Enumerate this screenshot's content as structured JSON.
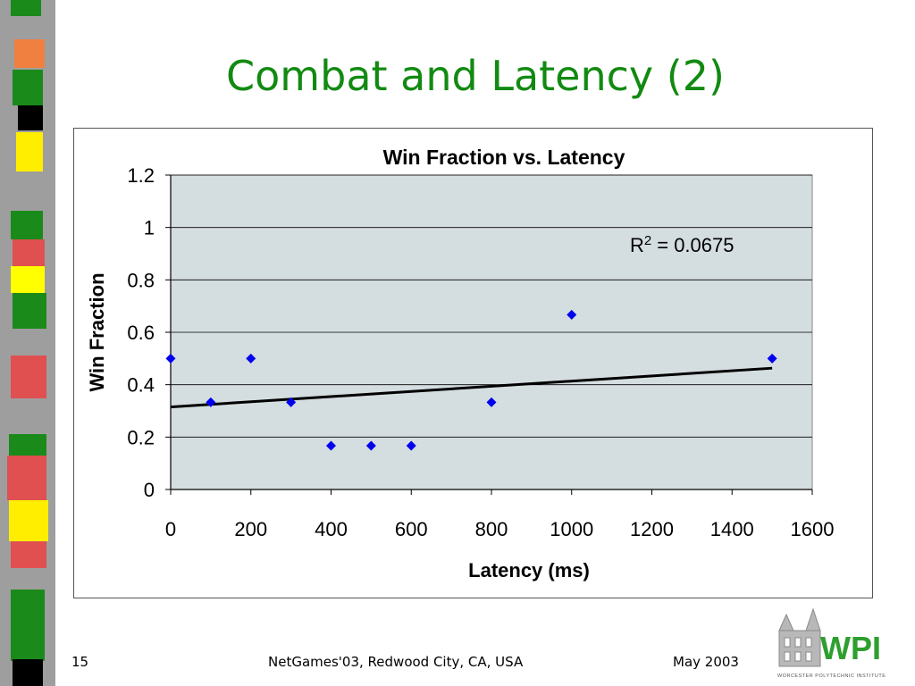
{
  "slide": {
    "title": "Combat and Latency (2)",
    "page_number": "15",
    "conference": "NetGames'03, Redwood City, CA, USA",
    "date": "May 2003"
  },
  "logo": {
    "text": "WPI",
    "subtext": "WORCESTER POLYTECHNIC INSTITUTE"
  },
  "chart_data": {
    "type": "scatter",
    "title": "Win Fraction vs. Latency",
    "xlabel": "Latency (ms)",
    "ylabel": "Win Fraction",
    "xlim": [
      0,
      1600
    ],
    "ylim": [
      0,
      1.2
    ],
    "x_ticks": [
      "0",
      "200",
      "400",
      "600",
      "800",
      "1000",
      "1200",
      "1400",
      "1600"
    ],
    "y_ticks": [
      "0",
      "0.2",
      "0.4",
      "0.6",
      "0.8",
      "1",
      "1.2"
    ],
    "grid": "horizontal",
    "points": [
      {
        "x": 0,
        "y": 0.5
      },
      {
        "x": 100,
        "y": 0.333
      },
      {
        "x": 200,
        "y": 0.5
      },
      {
        "x": 300,
        "y": 0.333
      },
      {
        "x": 400,
        "y": 0.167
      },
      {
        "x": 500,
        "y": 0.167
      },
      {
        "x": 600,
        "y": 0.167
      },
      {
        "x": 800,
        "y": 0.333
      },
      {
        "x": 1000,
        "y": 0.667
      },
      {
        "x": 1500,
        "y": 0.5
      }
    ],
    "trendline": {
      "x": [
        0,
        1500
      ],
      "y": [
        0.315,
        0.463
      ]
    },
    "r2_label": "= 0.0675",
    "r2_prefix": "R",
    "r2_superscript": "2",
    "colors": {
      "plot_bg": "#d4dde0",
      "marker": "#0000ee",
      "trendline": "#000000",
      "grid": "#000000"
    }
  }
}
